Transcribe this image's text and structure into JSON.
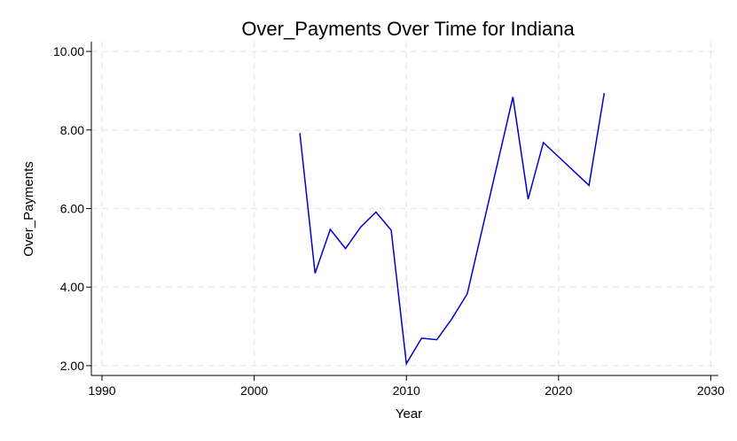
{
  "chart_data": {
    "type": "line",
    "title": "Over_Payments Over Time for Indiana",
    "xlabel": "Year",
    "ylabel": "Over_Payments",
    "xlim": [
      1989.3,
      2030.5
    ],
    "ylim": [
      1.75,
      10.25
    ],
    "x_ticks": [
      1990,
      2000,
      2010,
      2020,
      2030
    ],
    "x_tick_labels": [
      "1990",
      "2000",
      "2010",
      "2020",
      "2030"
    ],
    "y_ticks": [
      2,
      4,
      6,
      8,
      10
    ],
    "y_tick_labels": [
      "2.00",
      "4.00",
      "6.00",
      "8.00",
      "10.00"
    ],
    "grid": true,
    "line_color": "#0000cc",
    "series": [
      {
        "x": [
          2003,
          2004,
          2005,
          2006,
          2007,
          2008,
          2009,
          2010,
          2011,
          2012,
          2013,
          2014,
          2017,
          2018,
          2019,
          2022,
          2023
        ],
        "values": [
          7.92,
          4.35,
          5.47,
          4.98,
          5.53,
          5.91,
          5.45,
          2.05,
          2.7,
          2.66,
          3.2,
          3.83,
          8.84,
          6.24,
          7.68,
          6.59,
          8.94
        ]
      }
    ]
  }
}
